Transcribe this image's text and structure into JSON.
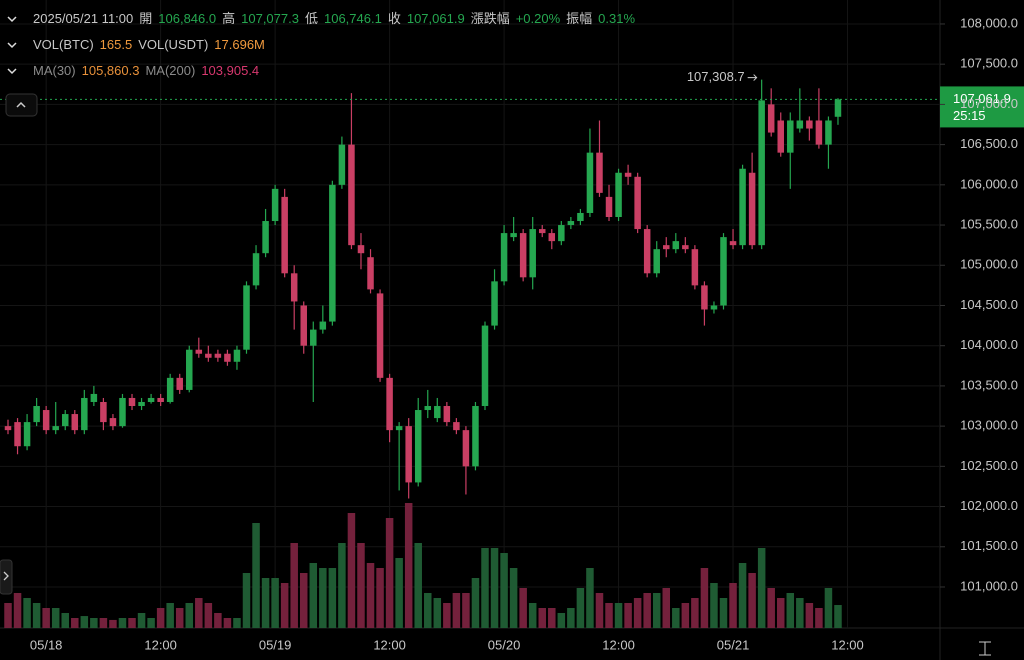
{
  "chart_data": {
    "type": "candlestick",
    "header": {
      "time": "2025/05/21 11:00",
      "open_label": "開",
      "open": "106,846.0",
      "high_label": "高",
      "high": "107,077.3",
      "low_label": "低",
      "low": "106,746.1",
      "close_label": "收",
      "close": "107,061.9",
      "change_label": "漲跌幅",
      "change": "+0.20%",
      "amp_label": "振幅",
      "amp": "0.31%",
      "vol_btc_label": "VOL(BTC)",
      "vol_btc": "165.5",
      "vol_usdt_label": "VOL(USDT)",
      "vol_usdt": "17.696M",
      "ma30_label": "MA(30)",
      "ma30": "105,860.3",
      "ma200_label": "MA(200)",
      "ma200": "103,905.4"
    },
    "max_marker": "107,308.7",
    "last_price_label": "107,061.9",
    "countdown": "25:15",
    "up_color": "#25a750",
    "down_color": "#ca3f64",
    "vol_up_color": "#1f5b33",
    "vol_down_color": "#74213c",
    "open": [
      103000,
      103050,
      102750,
      103050,
      103200,
      102950,
      103000,
      103150,
      102950,
      103300,
      103300,
      103100,
      103000,
      103350,
      103250,
      103300,
      103350,
      103300,
      103600,
      103450,
      103950,
      103900,
      103900,
      103900,
      103800,
      103950,
      104750,
      105150,
      105550,
      105850,
      104900,
      104500,
      104000,
      104200,
      104300,
      106000,
      106500,
      105250,
      105100,
      104650,
      103600,
      102950,
      103000,
      102300,
      103200,
      103100,
      103250,
      103050,
      102950,
      102500,
      103250,
      104250,
      104800,
      105350,
      105400,
      104850,
      105450,
      105400,
      105300,
      105500,
      105550,
      105650,
      106400,
      105850,
      105600,
      106150,
      106100,
      105450,
      104900,
      105250,
      105200,
      105250,
      105200,
      104750,
      104450,
      104500,
      105300,
      105250,
      106150,
      105250,
      107000,
      106800,
      106400,
      106700,
      106800,
      106800,
      106500,
      106846
    ],
    "close": [
      102950,
      102750,
      103050,
      103250,
      102950,
      103000,
      103150,
      102950,
      103350,
      103400,
      103050,
      103000,
      103350,
      103250,
      103300,
      103350,
      103300,
      103600,
      103450,
      103950,
      103900,
      103850,
      103850,
      103800,
      103950,
      104750,
      105150,
      105550,
      105950,
      104900,
      104550,
      104000,
      104200,
      104300,
      106000,
      106500,
      105250,
      105150,
      104700,
      103600,
      102950,
      103000,
      102300,
      103200,
      103250,
      103250,
      103050,
      102950,
      102500,
      103250,
      104250,
      104800,
      105400,
      105400,
      104850,
      105450,
      105400,
      105300,
      105500,
      105550,
      105650,
      106400,
      105900,
      105600,
      106150,
      106100,
      105450,
      104900,
      105200,
      105200,
      105300,
      105200,
      104750,
      104450,
      104500,
      105350,
      105250,
      106200,
      105250,
      107050,
      106650,
      106400,
      106800,
      106800,
      106700,
      106500,
      106800,
      107061.9
    ],
    "high": [
      103080,
      103100,
      103150,
      103350,
      103250,
      103300,
      103200,
      103200,
      103450,
      103500,
      103350,
      103150,
      103400,
      103400,
      103350,
      103400,
      103400,
      103650,
      103650,
      104000,
      104100,
      104000,
      103950,
      103950,
      104000,
      104800,
      105250,
      105700,
      106000,
      105950,
      105000,
      104550,
      104300,
      104500,
      106050,
      106600,
      107140,
      105400,
      105200,
      104700,
      103650,
      103050,
      103100,
      103350,
      103450,
      103350,
      103300,
      103100,
      103000,
      103300,
      104300,
      104950,
      105500,
      105600,
      105450,
      105600,
      105500,
      105450,
      105550,
      105600,
      105700,
      106700,
      106800,
      106000,
      106200,
      106250,
      106150,
      105500,
      105300,
      105350,
      105400,
      105350,
      105250,
      104800,
      104550,
      105400,
      105450,
      106250,
      106400,
      107308.7,
      107200,
      106900,
      106900,
      107200,
      106850,
      107200,
      106850,
      107077.3
    ],
    "low": [
      102900,
      102650,
      102700,
      103000,
      102900,
      102900,
      102950,
      102900,
      102900,
      103250,
      102950,
      102950,
      102980,
      103200,
      103200,
      103280,
      103250,
      103280,
      103400,
      103420,
      103850,
      103800,
      103800,
      103750,
      103700,
      103900,
      104700,
      105100,
      105500,
      104850,
      104200,
      103900,
      103300,
      104150,
      104250,
      105950,
      105200,
      104950,
      104650,
      103550,
      102800,
      102200,
      102100,
      102250,
      103100,
      103050,
      103000,
      102900,
      102150,
      102450,
      103200,
      104200,
      104750,
      105300,
      104800,
      104700,
      105350,
      105200,
      105250,
      105450,
      105500,
      105600,
      105850,
      105550,
      105550,
      106000,
      105400,
      104850,
      104850,
      105100,
      105150,
      105150,
      104700,
      104250,
      104400,
      104450,
      105200,
      105200,
      105200,
      105200,
      106600,
      106350,
      105950,
      106650,
      106550,
      106450,
      106200,
      106746.1
    ],
    "volumes": [
      180,
      252,
      216,
      180,
      144,
      144,
      108,
      72,
      86,
      72,
      72,
      58,
      72,
      72,
      108,
      72,
      144,
      180,
      144,
      180,
      216,
      180,
      108,
      72,
      72,
      396,
      756,
      360,
      360,
      324,
      612,
      396,
      468,
      432,
      432,
      612,
      828,
      612,
      468,
      432,
      792,
      504,
      900,
      612,
      252,
      216,
      180,
      252,
      252,
      360,
      576,
      576,
      540,
      432,
      288,
      180,
      144,
      144,
      108,
      144,
      288,
      432,
      252,
      180,
      180,
      180,
      216,
      252,
      252,
      288,
      144,
      180,
      216,
      432,
      324,
      216,
      324,
      468,
      396,
      576,
      288,
      216,
      252,
      216,
      180,
      144,
      288,
      165.5
    ],
    "ylim": [
      100490,
      108298
    ],
    "yticks": [
      {
        "value": 101000,
        "label": "101,000.0"
      },
      {
        "value": 101500,
        "label": "101,500.0"
      },
      {
        "value": 102000,
        "label": "102,000.0"
      },
      {
        "value": 102500,
        "label": "102,500.0"
      },
      {
        "value": 103000,
        "label": "103,000.0"
      },
      {
        "value": 103500,
        "label": "103,500.0"
      },
      {
        "value": 104000,
        "label": "104,000.0"
      },
      {
        "value": 104500,
        "label": "104,500.0"
      },
      {
        "value": 105000,
        "label": "105,000.0"
      },
      {
        "value": 105500,
        "label": "105,500.0"
      },
      {
        "value": 106000,
        "label": "106,000.0"
      },
      {
        "value": 106500,
        "label": "106,500.0"
      },
      {
        "value": 107000,
        "label": "107,000.0"
      },
      {
        "value": 107500,
        "label": "107,500.0"
      },
      {
        "value": 108000,
        "label": "108,000.0"
      }
    ],
    "xticks": [
      {
        "value": 4,
        "label": "05/18"
      },
      {
        "value": 16,
        "label": "12:00"
      },
      {
        "value": 28,
        "label": "05/19"
      },
      {
        "value": 40,
        "label": "12:00"
      },
      {
        "value": 52,
        "label": "05/20"
      },
      {
        "value": 64,
        "label": "12:00"
      },
      {
        "value": 76,
        "label": "05/21"
      },
      {
        "value": 88,
        "label": "12:00"
      }
    ],
    "grid": true
  }
}
